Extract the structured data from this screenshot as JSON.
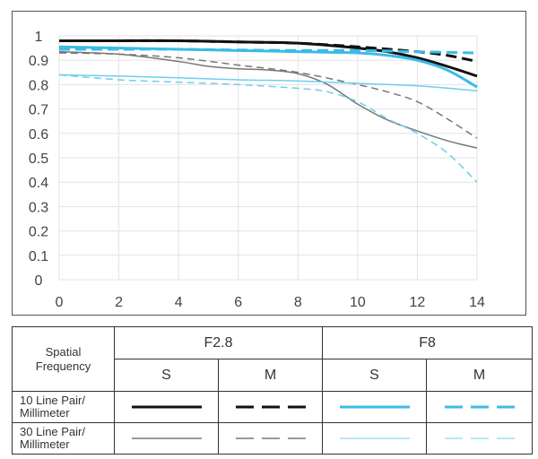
{
  "chart_data": {
    "type": "line",
    "xlim": [
      0,
      14
    ],
    "ylim": [
      0,
      1
    ],
    "x_ticks": [
      "0",
      "2",
      "4",
      "6",
      "8",
      "10",
      "12",
      "14"
    ],
    "y_ticks": [
      "0",
      "0.1",
      "0.2",
      "0.3",
      "0.4",
      "0.5",
      "0.6",
      "0.7",
      "0.8",
      "0.9",
      "1"
    ],
    "grid": true,
    "series": [
      {
        "key": "f28-10-s",
        "color": "#111111",
        "dash": "solid",
        "width": 3,
        "x": [
          0,
          2,
          4,
          6,
          8,
          10,
          11,
          12,
          13,
          14
        ],
        "y": [
          0.98,
          0.98,
          0.98,
          0.975,
          0.97,
          0.95,
          0.935,
          0.91,
          0.875,
          0.835
        ]
      },
      {
        "key": "f28-10-m",
        "color": "#111111",
        "dash": "dashed",
        "width": 3,
        "x": [
          0,
          2,
          4,
          6,
          8,
          10,
          12,
          13,
          14
        ],
        "y": [
          0.98,
          0.98,
          0.98,
          0.975,
          0.97,
          0.955,
          0.935,
          0.92,
          0.895
        ]
      },
      {
        "key": "f8-10-s",
        "color": "#3bbbe6",
        "dash": "solid",
        "width": 3,
        "x": [
          0,
          2,
          4,
          6,
          8,
          10,
          11,
          12,
          13,
          14
        ],
        "y": [
          0.955,
          0.95,
          0.945,
          0.94,
          0.935,
          0.93,
          0.92,
          0.9,
          0.86,
          0.79
        ]
      },
      {
        "key": "f8-10-m",
        "color": "#3bbbe6",
        "dash": "dashed",
        "width": 3,
        "x": [
          0,
          2,
          4,
          6,
          8,
          10,
          12,
          14
        ],
        "y": [
          0.945,
          0.945,
          0.945,
          0.942,
          0.94,
          0.94,
          0.935,
          0.93
        ]
      },
      {
        "key": "f28-30-s",
        "color": "#777777",
        "dash": "solid",
        "width": 1.5,
        "x": [
          0,
          2,
          4,
          5,
          6,
          7,
          8,
          9,
          10,
          11,
          12,
          13,
          14
        ],
        "y": [
          0.935,
          0.925,
          0.895,
          0.875,
          0.865,
          0.86,
          0.845,
          0.8,
          0.72,
          0.655,
          0.61,
          0.57,
          0.54
        ]
      },
      {
        "key": "f28-30-m",
        "color": "#777777",
        "dash": "dashed",
        "width": 1.5,
        "x": [
          0,
          2,
          4,
          6,
          8,
          10,
          11,
          12,
          13,
          14
        ],
        "y": [
          0.93,
          0.925,
          0.91,
          0.88,
          0.85,
          0.8,
          0.77,
          0.73,
          0.66,
          0.58
        ]
      },
      {
        "key": "f8-30-s",
        "color": "#6fcfee",
        "dash": "solid",
        "width": 1.5,
        "x": [
          0,
          2,
          4,
          6,
          8,
          10,
          12,
          14
        ],
        "y": [
          0.84,
          0.835,
          0.828,
          0.82,
          0.815,
          0.805,
          0.795,
          0.775
        ]
      },
      {
        "key": "f8-30-m",
        "color": "#6fcfee",
        "dash": "dashed",
        "width": 1.5,
        "x": [
          0,
          2,
          4,
          6,
          8,
          9,
          10,
          11,
          12,
          13,
          14
        ],
        "y": [
          0.84,
          0.82,
          0.81,
          0.8,
          0.785,
          0.77,
          0.73,
          0.66,
          0.6,
          0.52,
          0.4
        ]
      }
    ]
  },
  "legend": {
    "spatial_frequency": "Spatial Frequency",
    "aperture_1": "F2.8",
    "aperture_2": "F8",
    "col_s": "S",
    "col_m": "M",
    "row_10": "10 Line Pair/ Millimeter",
    "row_30": "30 Line Pair/ Millimeter",
    "colors": {
      "black": "#111111",
      "blue": "#3bbbe6",
      "light_blue": "#6fcfee",
      "gray_thin": "#333333"
    }
  }
}
